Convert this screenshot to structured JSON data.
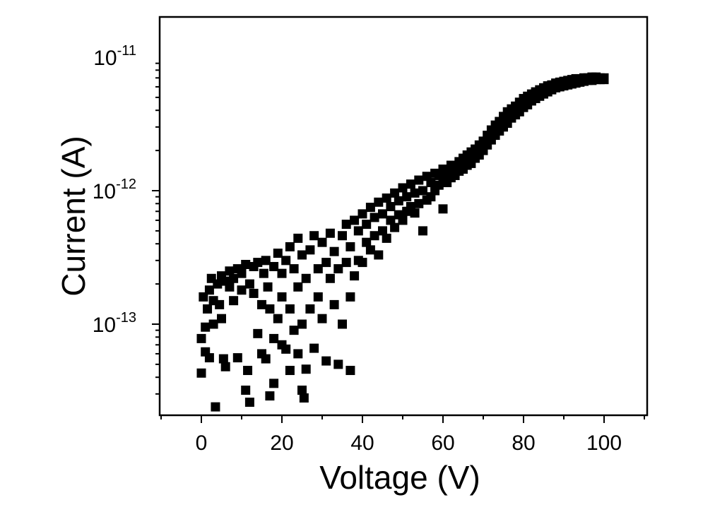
{
  "chart_data": {
    "type": "scatter",
    "title": "",
    "xlabel": "Voltage (V)",
    "ylabel": "Current (A)",
    "xlim": [
      -10,
      110
    ],
    "ylim": [
      2e-14,
      2e-11
    ],
    "yscale": "log",
    "grid": false,
    "legend": "none",
    "marker": "square",
    "colors": {
      "marker": "#000000",
      "axis": "#000000",
      "background": "#ffffff"
    },
    "x_ticks": [
      {
        "value": 0,
        "label": "0"
      },
      {
        "value": 20,
        "label": "20"
      },
      {
        "value": 40,
        "label": "40"
      },
      {
        "value": 60,
        "label": "60"
      },
      {
        "value": 80,
        "label": "80"
      },
      {
        "value": 100,
        "label": "100"
      }
    ],
    "y_ticks": [
      {
        "value": 1e-13,
        "base": "10",
        "exponent": "-13"
      },
      {
        "value": 1e-12,
        "base": "10",
        "exponent": "-12"
      },
      {
        "value": 1e-11,
        "base": "10",
        "exponent": "-11"
      }
    ],
    "series": [
      {
        "points": [
          [
            0,
            4.3e-14
          ],
          [
            0,
            7.8e-14
          ],
          [
            0.5,
            1.6e-13
          ],
          [
            1,
            6.2e-14
          ],
          [
            1,
            9.5e-14
          ],
          [
            1.5,
            1.3e-13
          ],
          [
            2,
            1.8e-13
          ],
          [
            2,
            5.6e-14
          ],
          [
            2.5,
            2.2e-13
          ],
          [
            3,
            1.5e-13
          ],
          [
            3,
            1e-13
          ],
          [
            3.5,
            2.4e-14
          ],
          [
            4,
            2e-13
          ],
          [
            4.5,
            1.4e-13
          ],
          [
            5,
            2.3e-13
          ],
          [
            5,
            1.1e-13
          ],
          [
            5.5,
            5.5e-14
          ],
          [
            6,
            4.8e-14
          ],
          [
            6,
            2.1e-13
          ],
          [
            7,
            1.9e-13
          ],
          [
            7,
            2.5e-13
          ],
          [
            8,
            2.2e-13
          ],
          [
            8,
            1.5e-13
          ],
          [
            9,
            2.6e-13
          ],
          [
            9,
            5.6e-14
          ],
          [
            10,
            2.4e-13
          ],
          [
            10,
            1.8e-13
          ],
          [
            11,
            2.8e-13
          ],
          [
            11,
            3.2e-14
          ],
          [
            11.5,
            4.5e-14
          ],
          [
            12,
            2.6e-14
          ],
          [
            12,
            2e-13
          ],
          [
            13,
            2.7e-13
          ],
          [
            13,
            1.7e-13
          ],
          [
            14,
            8.5e-14
          ],
          [
            14,
            2.9e-13
          ],
          [
            15,
            6e-14
          ],
          [
            15,
            1.4e-13
          ],
          [
            15.5,
            2.4e-13
          ],
          [
            16,
            5.5e-14
          ],
          [
            16,
            3e-13
          ],
          [
            16.5,
            1.9e-13
          ],
          [
            17,
            2.9e-14
          ],
          [
            17,
            1.3e-13
          ],
          [
            18,
            3.6e-14
          ],
          [
            18,
            7.8e-14
          ],
          [
            18,
            2.7e-13
          ],
          [
            19,
            1.1e-13
          ],
          [
            19,
            3.4e-13
          ],
          [
            20,
            7e-14
          ],
          [
            20,
            2.4e-13
          ],
          [
            20,
            1.6e-13
          ],
          [
            21,
            6.5e-14
          ],
          [
            21,
            3e-13
          ],
          [
            22,
            4.5e-14
          ],
          [
            22,
            1.3e-13
          ],
          [
            22,
            3.8e-13
          ],
          [
            23,
            9e-14
          ],
          [
            23,
            2.6e-13
          ],
          [
            24,
            6e-14
          ],
          [
            24,
            4.4e-13
          ],
          [
            24,
            1.9e-13
          ],
          [
            25,
            3.2e-14
          ],
          [
            25,
            1e-13
          ],
          [
            25,
            3.3e-13
          ],
          [
            25.5,
            2.8e-14
          ],
          [
            26,
            4.6e-14
          ],
          [
            26,
            2.2e-13
          ],
          [
            27,
            1.3e-13
          ],
          [
            27,
            3.6e-13
          ],
          [
            28,
            6.6e-14
          ],
          [
            28,
            4.6e-13
          ],
          [
            29,
            1.6e-13
          ],
          [
            29,
            2.6e-13
          ],
          [
            30,
            1.1e-13
          ],
          [
            30,
            4.1e-13
          ],
          [
            31,
            5.3e-14
          ],
          [
            31,
            2.9e-13
          ],
          [
            32,
            2.2e-13
          ],
          [
            32,
            4.8e-13
          ],
          [
            33,
            1.4e-13
          ],
          [
            33,
            3.5e-13
          ],
          [
            34,
            5e-14
          ],
          [
            34,
            2.6e-13
          ],
          [
            35,
            1e-13
          ],
          [
            35,
            4.6e-13
          ],
          [
            36,
            2.9e-13
          ],
          [
            36,
            5.6e-13
          ],
          [
            37,
            4.5e-14
          ],
          [
            37,
            1.6e-13
          ],
          [
            37,
            3.8e-13
          ],
          [
            38,
            2.3e-13
          ],
          [
            38,
            6e-13
          ],
          [
            39,
            3e-13
          ],
          [
            39,
            5e-13
          ],
          [
            40,
            2.9e-13
          ],
          [
            40,
            6.7e-13
          ],
          [
            41,
            4.1e-13
          ],
          [
            41,
            5.6e-13
          ],
          [
            42,
            3.6e-13
          ],
          [
            42,
            7.5e-13
          ],
          [
            43,
            4.6e-13
          ],
          [
            43,
            6.3e-13
          ],
          [
            44,
            3.3e-13
          ],
          [
            44,
            8.2e-13
          ],
          [
            45,
            5e-13
          ],
          [
            45,
            6.7e-13
          ],
          [
            46,
            4.4e-13
          ],
          [
            46,
            8.8e-13
          ],
          [
            47,
            6e-13
          ],
          [
            47,
            7.6e-13
          ],
          [
            48,
            5.3e-13
          ],
          [
            48,
            9.6e-13
          ],
          [
            49,
            6.6e-13
          ],
          [
            49,
            8.4e-13
          ],
          [
            50,
            6e-13
          ],
          [
            50,
            1.05e-12
          ],
          [
            51,
            7e-13
          ],
          [
            51,
            9e-13
          ],
          [
            52,
            7.6e-13
          ],
          [
            52,
            1.12e-12
          ],
          [
            53,
            6.8e-13
          ],
          [
            53,
            9.6e-13
          ],
          [
            54,
            8e-13
          ],
          [
            54,
            1.2e-12
          ],
          [
            55,
            5e-13
          ],
          [
            55,
            1e-12
          ],
          [
            56,
            8.5e-13
          ],
          [
            56,
            1.28e-12
          ],
          [
            57,
            9e-13
          ],
          [
            57,
            1.15e-12
          ],
          [
            58,
            1e-12
          ],
          [
            58,
            1.35e-12
          ],
          [
            59,
            1.1e-12
          ],
          [
            59,
            1.3e-12
          ],
          [
            60,
            7.3e-13
          ],
          [
            60,
            1.2e-12
          ],
          [
            60,
            1.45e-12
          ],
          [
            61,
            1.15e-12
          ],
          [
            61,
            1.38e-12
          ],
          [
            62,
            1.25e-12
          ],
          [
            62,
            1.55e-12
          ],
          [
            63,
            1.3e-12
          ],
          [
            63,
            1.5e-12
          ],
          [
            64,
            1.4e-12
          ],
          [
            64,
            1.65e-12
          ],
          [
            65,
            1.45e-12
          ],
          [
            65,
            1.75e-12
          ],
          [
            66,
            1.55e-12
          ],
          [
            66,
            1.85e-12
          ],
          [
            67,
            1.6e-12
          ],
          [
            67,
            1.95e-12
          ],
          [
            68,
            1.75e-12
          ],
          [
            68,
            2.05e-12
          ],
          [
            69,
            1.85e-12
          ],
          [
            69,
            2.2e-12
          ],
          [
            70,
            2e-12
          ],
          [
            70,
            2.35e-12
          ],
          [
            71,
            2.2e-12
          ],
          [
            71,
            2.6e-12
          ],
          [
            72,
            2.4e-12
          ],
          [
            72,
            2.85e-12
          ],
          [
            73,
            2.6e-12
          ],
          [
            73,
            3.1e-12
          ],
          [
            74,
            2.8e-12
          ],
          [
            74,
            3.3e-12
          ],
          [
            75,
            3e-12
          ],
          [
            75,
            3.6e-12
          ],
          [
            76,
            3.2e-12
          ],
          [
            76,
            3.9e-12
          ],
          [
            77,
            3.5e-12
          ],
          [
            77,
            4.1e-12
          ],
          [
            78,
            3.7e-12
          ],
          [
            78,
            4.3e-12
          ],
          [
            79,
            3.9e-12
          ],
          [
            79,
            4.6e-12
          ],
          [
            80,
            4.2e-12
          ],
          [
            80,
            4.9e-12
          ],
          [
            81,
            4.4e-12
          ],
          [
            81,
            5.1e-12
          ],
          [
            82,
            4.7e-12
          ],
          [
            82,
            5.3e-12
          ],
          [
            83,
            4.9e-12
          ],
          [
            83,
            5.5e-12
          ],
          [
            84,
            5.1e-12
          ],
          [
            84,
            5.7e-12
          ],
          [
            85,
            5.3e-12
          ],
          [
            85,
            5.9e-12
          ],
          [
            86,
            5.5e-12
          ],
          [
            86,
            6.1e-12
          ],
          [
            87,
            5.7e-12
          ],
          [
            87,
            6.2e-12
          ],
          [
            88,
            5.9e-12
          ],
          [
            88,
            6.4e-12
          ],
          [
            89,
            6e-12
          ],
          [
            89,
            6.5e-12
          ],
          [
            90,
            6.1e-12
          ],
          [
            90,
            6.6e-12
          ],
          [
            91,
            6.2e-12
          ],
          [
            91,
            6.7e-12
          ],
          [
            92,
            6.3e-12
          ],
          [
            92,
            6.8e-12
          ],
          [
            93,
            6.4e-12
          ],
          [
            93,
            6.9e-12
          ],
          [
            94,
            6.5e-12
          ],
          [
            94,
            6.9e-12
          ],
          [
            95,
            6.6e-12
          ],
          [
            95,
            7e-12
          ],
          [
            96,
            6.7e-12
          ],
          [
            96,
            7e-12
          ],
          [
            97,
            6.7e-12
          ],
          [
            97,
            7.1e-12
          ],
          [
            98,
            6.8e-12
          ],
          [
            98,
            7.1e-12
          ],
          [
            99,
            6.8e-12
          ],
          [
            99,
            7e-12
          ],
          [
            100,
            6.8e-12
          ],
          [
            100,
            7e-12
          ]
        ]
      }
    ]
  }
}
